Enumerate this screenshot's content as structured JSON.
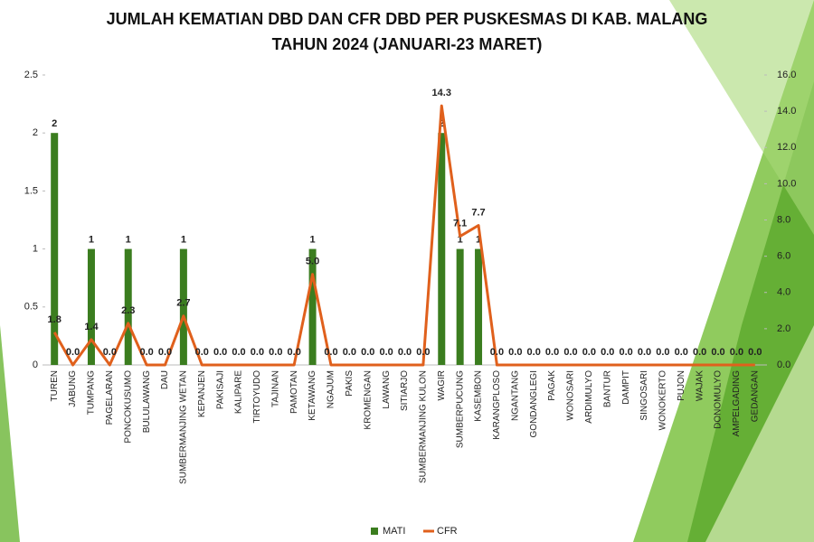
{
  "chart_data": {
    "type": "bar",
    "title": [
      "JUMLAH KEMATIAN DBD DAN CFR DBD PER PUSKESMAS DI KAB. MALANG",
      "TAHUN 2024 (JANUARI-23 MARET)"
    ],
    "categories": [
      "TUREN",
      "JABUNG",
      "TUMPANG",
      "PAGELARAN",
      "PONCOKUSUMO",
      "BULULAWANG",
      "DAU",
      "SUMBERMANJING WETAN",
      "KEPANJEN",
      "PAKISAJI",
      "KALIPARE",
      "TIRTOYUDO",
      "TAJINAN",
      "PAMOTAN",
      "KETAWANG",
      "NGAJUM",
      "PAKIS",
      "KROMENGAN",
      "LAWANG",
      "SITIARJO",
      "SUMBERMANJING KULON",
      "WAGIR",
      "SUMBERPUCUNG",
      "KASEMBON",
      "KARANGPLOSO",
      "NGANTANG",
      "GONDANGLEGI",
      "PAGAK",
      "WONOSARI",
      "ARDIMULYO",
      "BANTUR",
      "DAMPIT",
      "SINGOSARI",
      "WONOKERTO",
      "PUJON",
      "WAJAK",
      "DONOMULYO",
      "AMPELGADING",
      "GEDANGAN"
    ],
    "series": [
      {
        "name": "MATI",
        "type": "bar",
        "color": "#3b7d1f",
        "values": [
          2,
          0,
          1,
          0,
          1,
          0,
          0,
          1,
          0,
          0,
          0,
          0,
          0,
          0,
          1,
          0,
          0,
          0,
          0,
          0,
          0,
          2,
          1,
          1,
          0,
          0,
          0,
          0,
          0,
          0,
          0,
          0,
          0,
          0,
          0,
          0,
          0,
          0,
          0
        ]
      },
      {
        "name": "CFR",
        "type": "line",
        "axis": "y2",
        "color": "#e0601c",
        "values": [
          1.8,
          0,
          1.4,
          0,
          2.3,
          0,
          0,
          2.7,
          0,
          0,
          0,
          0,
          0,
          0,
          5,
          0,
          0,
          0,
          0,
          0,
          0,
          14.3,
          7.1,
          7.7,
          0,
          0,
          0,
          0,
          0,
          0,
          0,
          0,
          0,
          0,
          0,
          0,
          0,
          0,
          0
        ],
        "value_labels": [
          "1.8",
          "0.0",
          "1.4",
          "0.0",
          "2.3",
          "0.0",
          "0.0",
          "2.7",
          "0.0",
          "0.0",
          "0.0",
          "0.0",
          "0.0",
          "0.0",
          "5.0",
          "0.0",
          "0.0",
          "0.0",
          "0.0",
          "0.0",
          "0.0",
          "14.3",
          "7.1",
          "7.7",
          "0.0",
          "0.0",
          "0.0",
          "0.0",
          "0.0",
          "0.0",
          "0.0",
          "0.0",
          "0.0",
          "0.0",
          "0.0",
          "0.0",
          "0.0",
          "0.0",
          "0.0"
        ]
      }
    ],
    "ylim": [
      0,
      2.5
    ],
    "yticks": [
      0,
      0.5,
      1,
      1.5,
      2,
      2.5
    ],
    "y2lim": [
      0,
      16
    ],
    "y2ticks": [
      {
        "value": 0,
        "label": "0.0"
      },
      {
        "value": 2,
        "label": "2.0"
      },
      {
        "value": 4,
        "label": "4.0"
      },
      {
        "value": 6,
        "label": "6.0"
      },
      {
        "value": 8,
        "label": "8.0"
      },
      {
        "value": 10,
        "label": "10.0"
      },
      {
        "value": 12,
        "label": "12.0"
      },
      {
        "value": 14,
        "label": "14.0"
      },
      {
        "value": 16,
        "label": "16.0"
      }
    ],
    "legend": "bottom"
  }
}
